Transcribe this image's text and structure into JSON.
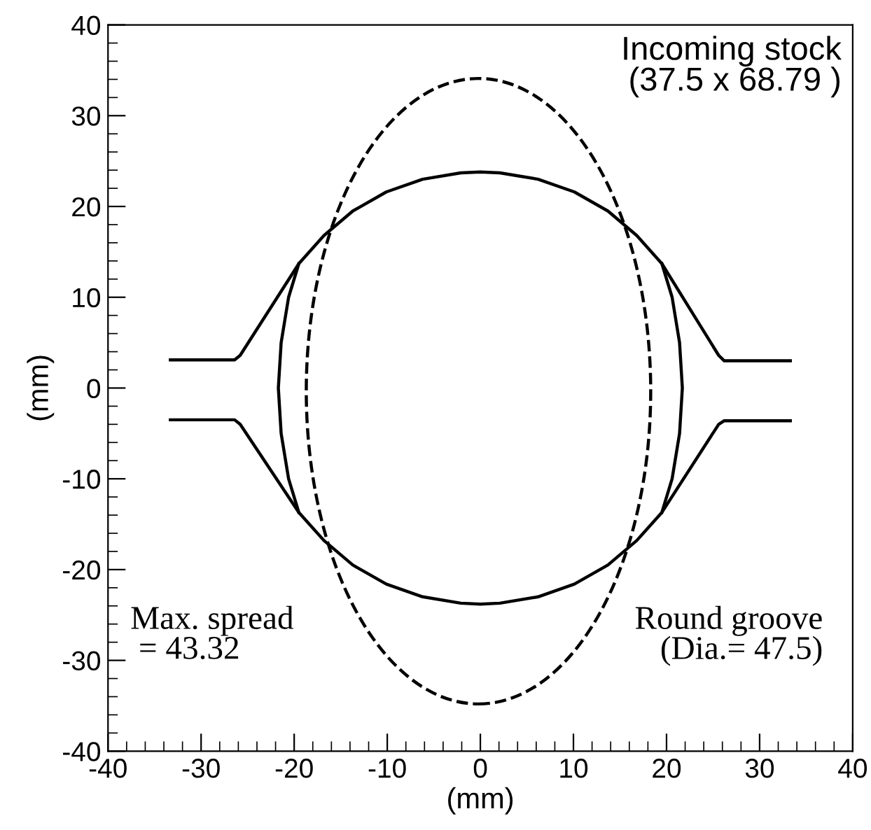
{
  "chart_data": {
    "type": "line",
    "xlabel": "(mm)",
    "ylabel": "(mm)",
    "xlim": [
      -40,
      40
    ],
    "ylim": [
      -40,
      40
    ],
    "xticks": [
      -40,
      -30,
      -20,
      -10,
      0,
      10,
      20,
      30,
      40
    ],
    "yticks": [
      -40,
      -30,
      -20,
      -10,
      0,
      10,
      20,
      30,
      40
    ],
    "grid": false,
    "legend": false,
    "marker": "none",
    "annotations": [
      "Incoming stock\n(37.5 x 68.79 )",
      "Max. spread\n = 43.32",
      "Round groove\n(Dia.= 47.5)"
    ],
    "series": [
      {
        "color": "#000000",
        "line_style": "solid",
        "x": [
          -33.3,
          -26.4,
          -25.8,
          -19.5,
          -16.8,
          -13.7,
          -10.1,
          -6.2,
          -2.1,
          0,
          2.1,
          6.2,
          10.1,
          13.7,
          16.8,
          19.5,
          25.6,
          26.2,
          33.3
        ],
        "values": [
          3.1,
          3.1,
          3.6,
          13.7,
          16.8,
          19.5,
          21.6,
          23.0,
          23.7,
          23.8,
          23.7,
          23.0,
          21.6,
          19.5,
          16.8,
          13.7,
          3.6,
          3.0,
          3.0
        ]
      },
      {
        "color": "#000000",
        "line_style": "solid",
        "x": [
          -33.3,
          -26.4,
          -25.8,
          -19.5,
          -16.8,
          -13.7,
          -10.1,
          -6.2,
          -2.1,
          0,
          2.1,
          6.2,
          10.1,
          13.7,
          16.8,
          19.5,
          25.6,
          26.2,
          33.3
        ],
        "values": [
          -3.5,
          -3.5,
          -4.0,
          -13.7,
          -16.8,
          -19.5,
          -21.6,
          -23.0,
          -23.7,
          -23.8,
          -23.7,
          -23.0,
          -21.6,
          -19.5,
          -16.8,
          -13.7,
          -4.0,
          -3.6,
          -3.6
        ]
      },
      {
        "color": "#000000",
        "line_style": "solid",
        "x": [
          -19.5,
          -20.6,
          -21.4,
          -21.7,
          -21.4,
          -20.6,
          -19.5
        ],
        "values": [
          13.7,
          10,
          5,
          0,
          -5,
          -10,
          -13.7
        ]
      },
      {
        "color": "#000000",
        "line_style": "solid",
        "x": [
          19.5,
          20.6,
          21.4,
          21.7,
          21.4,
          20.6,
          19.5
        ],
        "values": [
          13.7,
          10,
          5,
          0,
          -5,
          -10,
          -13.7
        ]
      }
    ]
  }
}
